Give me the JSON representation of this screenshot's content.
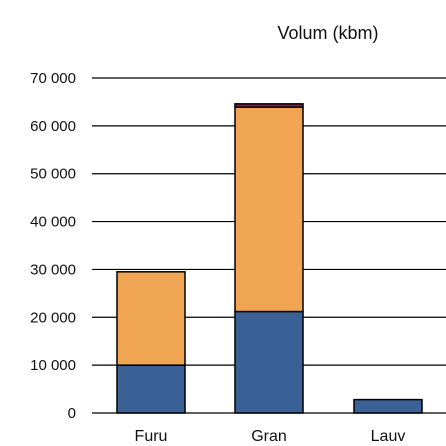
{
  "chart_data": {
    "type": "bar",
    "stacked": true,
    "title": "Volum (kbm)",
    "xlabel": "",
    "ylabel": "",
    "categories": [
      "Furu",
      "Gran",
      "Lauv"
    ],
    "ylim": [
      0,
      70000
    ],
    "yticks": [
      0,
      10000,
      20000,
      30000,
      40000,
      50000,
      60000,
      70000
    ],
    "ytick_labels": [
      "0",
      "10 000",
      "20 000",
      "30 000",
      "40 000",
      "50 000",
      "60 000",
      "70 000"
    ],
    "grid": true,
    "legend": "none",
    "series": [
      {
        "values": [
          10000,
          21200,
          2800
        ],
        "color": "#3a6296"
      },
      {
        "values": [
          19500,
          42700,
          0
        ],
        "color": "#f0a552"
      },
      {
        "values": [
          0,
          700,
          0
        ],
        "color": "#8b1a4a"
      }
    ]
  }
}
